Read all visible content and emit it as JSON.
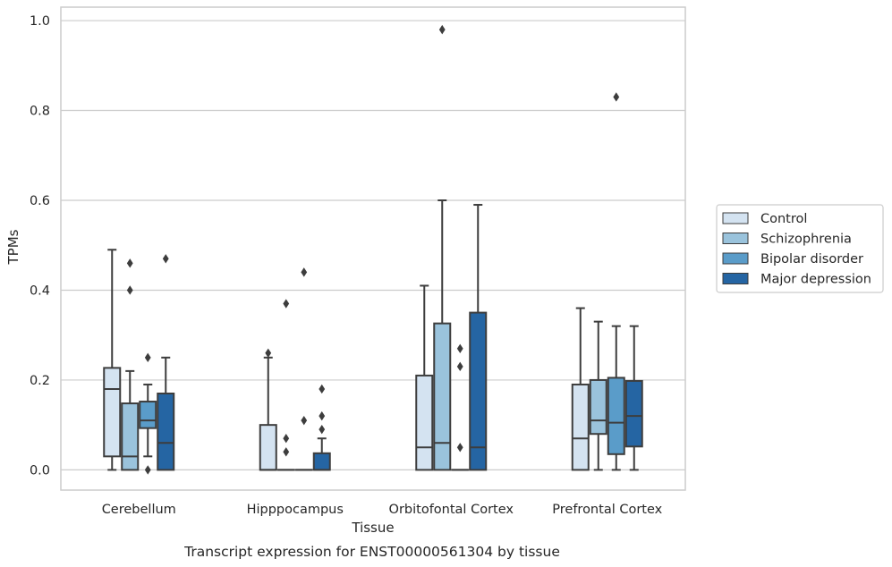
{
  "caption": "Transcript expression for ENST00000561304 by tissue",
  "chart_data": {
    "type": "boxplot",
    "xlabel": "Tissue",
    "ylabel": "TPMs",
    "ylim": [
      -0.045,
      1.03
    ],
    "yticks": [
      0.0,
      0.2,
      0.4,
      0.6,
      0.8,
      1.0
    ],
    "ytick_labels": [
      "0.0",
      "0.2",
      "0.4",
      "0.6",
      "0.8",
      "1.0"
    ],
    "grid": "horizontal",
    "legend_position": "right-center",
    "categories": [
      "Cerebellum",
      "Hipppocampus",
      "Orbitofontal Cortex",
      "Prefrontal Cortex"
    ],
    "series": [
      {
        "name": "Control",
        "color": "#d4e3f1",
        "boxes": [
          {
            "min": 0.0,
            "q1": 0.03,
            "median": 0.18,
            "q3": 0.227,
            "max": 0.49,
            "outliers": []
          },
          {
            "min": 0.0,
            "q1": 0.0,
            "median": 0.0,
            "q3": 0.1,
            "max": 0.25,
            "outliers": [
              0.26
            ]
          },
          {
            "min": 0.0,
            "q1": 0.0,
            "median": 0.05,
            "q3": 0.21,
            "max": 0.41,
            "outliers": []
          },
          {
            "min": 0.0,
            "q1": 0.0,
            "median": 0.07,
            "q3": 0.19,
            "max": 0.36,
            "outliers": []
          }
        ]
      },
      {
        "name": "Schizophrenia",
        "color": "#9ac3dc",
        "boxes": [
          {
            "min": 0.0,
            "q1": 0.0,
            "median": 0.03,
            "q3": 0.148,
            "max": 0.22,
            "outliers": [
              0.4,
              0.46
            ]
          },
          {
            "min": 0.0,
            "q1": 0.0,
            "median": 0.0,
            "q3": 0.0,
            "max": 0.0,
            "outliers": [
              0.04,
              0.07,
              0.37
            ]
          },
          {
            "min": 0.0,
            "q1": 0.0,
            "median": 0.06,
            "q3": 0.326,
            "max": 0.6,
            "outliers": [
              0.98
            ]
          },
          {
            "min": 0.0,
            "q1": 0.08,
            "median": 0.11,
            "q3": 0.2,
            "max": 0.33,
            "outliers": []
          }
        ]
      },
      {
        "name": "Bipolar disorder",
        "color": "#5a9cc9",
        "boxes": [
          {
            "min": 0.03,
            "q1": 0.093,
            "median": 0.11,
            "q3": 0.152,
            "max": 0.19,
            "outliers": [
              0.0,
              0.25
            ]
          },
          {
            "min": 0.0,
            "q1": 0.0,
            "median": 0.0,
            "q3": 0.0,
            "max": 0.0,
            "outliers": [
              0.11,
              0.44
            ]
          },
          {
            "min": 0.0,
            "q1": 0.0,
            "median": 0.0,
            "q3": 0.0,
            "max": 0.0,
            "outliers": [
              0.05,
              0.23,
              0.27
            ]
          },
          {
            "min": 0.0,
            "q1": 0.035,
            "median": 0.105,
            "q3": 0.205,
            "max": 0.32,
            "outliers": [
              0.83
            ]
          }
        ]
      },
      {
        "name": "Major depression",
        "color": "#2565a3",
        "boxes": [
          {
            "min": 0.0,
            "q1": 0.0,
            "median": 0.06,
            "q3": 0.17,
            "max": 0.25,
            "outliers": [
              0.47
            ]
          },
          {
            "min": 0.0,
            "q1": 0.0,
            "median": 0.0,
            "q3": 0.037,
            "max": 0.07,
            "outliers": [
              0.09,
              0.12,
              0.18
            ]
          },
          {
            "min": 0.0,
            "q1": 0.0,
            "median": 0.05,
            "q3": 0.35,
            "max": 0.59,
            "outliers": []
          },
          {
            "min": 0.0,
            "q1": 0.052,
            "median": 0.12,
            "q3": 0.198,
            "max": 0.32,
            "outliers": []
          }
        ]
      }
    ]
  }
}
